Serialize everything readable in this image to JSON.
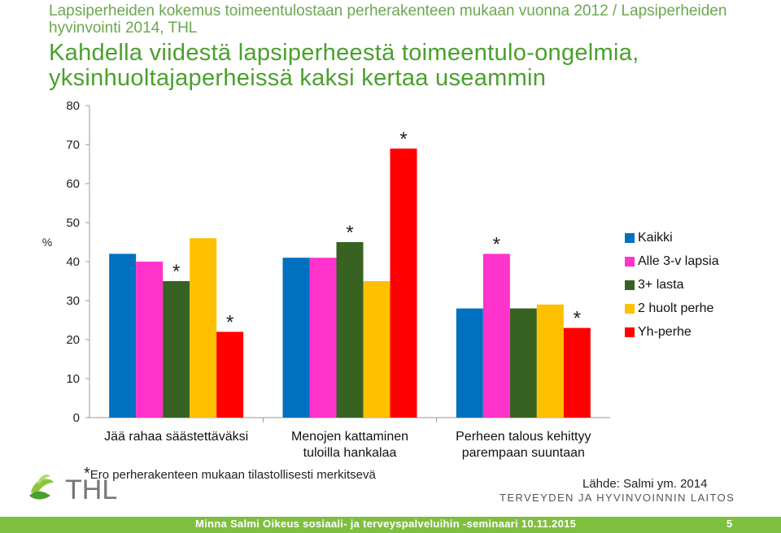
{
  "header": {
    "subtitle": "Lapsiperheiden kokemus toimeentulostaan perherakenteen mukaan vuonna 2012 / Lapsiperheiden hyvinvointi 2014, THL",
    "headline": "Kahdella viidestä lapsiperheestä toimeentulo-ongelmia, yksinhuoltajaperheissä kaksi kertaa useammin"
  },
  "chart_data": {
    "type": "bar",
    "ylabel": "%",
    "ylim": [
      0,
      80
    ],
    "yticks": [
      "0",
      "10",
      "20",
      "30",
      "40",
      "50",
      "60",
      "70",
      "80"
    ],
    "categories": [
      [
        "Jää rahaa säästettäväksi"
      ],
      [
        "Menojen kattaminen",
        "tuloilla hankalaa"
      ],
      [
        "Perheen talous kehittyy",
        "parempaan suuntaan"
      ]
    ],
    "series": [
      {
        "name": "Kaikki",
        "color": "#0070c0",
        "values": [
          42,
          41,
          28
        ],
        "significant": [
          false,
          false,
          false
        ]
      },
      {
        "name": "Alle 3-v lapsia",
        "color": "#ff33cc",
        "values": [
          40,
          41,
          42
        ],
        "significant": [
          false,
          false,
          true
        ]
      },
      {
        "name": "3+ lasta",
        "color": "#376222",
        "values": [
          35,
          45,
          28
        ],
        "significant": [
          true,
          true,
          false
        ]
      },
      {
        "name": "2 huolt perhe",
        "color": "#ffc000",
        "values": [
          46,
          35,
          29
        ],
        "significant": [
          false,
          false,
          false
        ]
      },
      {
        "name": "Yh-perhe",
        "color": "#ff0000",
        "values": [
          22,
          69,
          23
        ],
        "significant": [
          true,
          true,
          true
        ]
      }
    ],
    "significance_marker": "*",
    "grid": false,
    "legend": "right"
  },
  "footnote": {
    "marker": "*",
    "text": "Ero perherakenteen mukaan tilastollisesti merkitsevä"
  },
  "source": "Lähde: Salmi ym. 2014",
  "organization": "TERVEYDEN JA HYVINVOINNIN LAITOS",
  "logo_text": "THL",
  "footer": {
    "text": "Minna Salmi  Oikeus sosiaali- ja terveyspalveluihin -seminaari 10.11.2015",
    "page": "5"
  }
}
